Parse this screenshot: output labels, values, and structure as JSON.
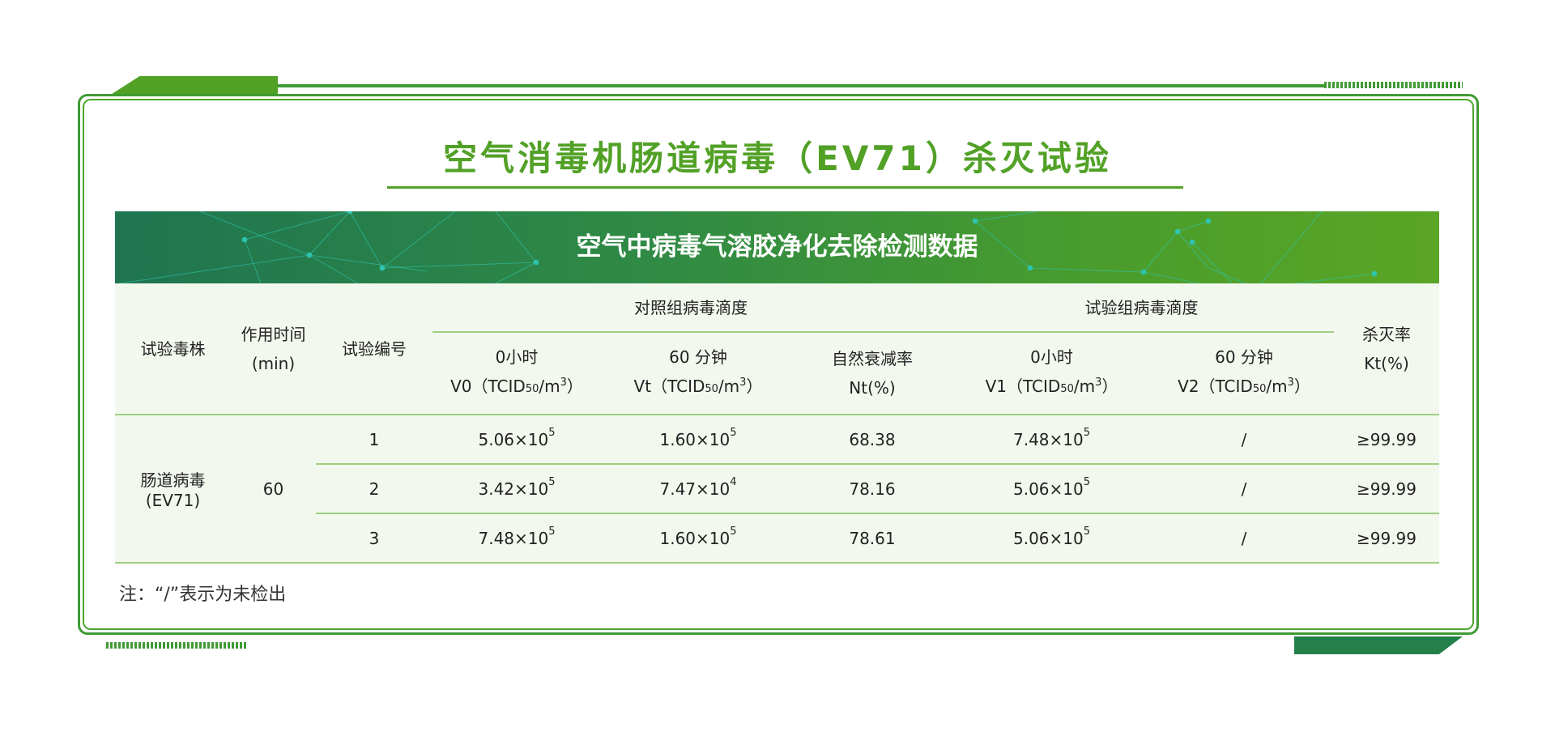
{
  "title": "空气消毒机肠道病毒（EV71）杀灭试验",
  "banner_title": "空气中病毒气溶胶净化去除检测数据",
  "colors": {
    "accent": "#52a127",
    "dark_green": "#1f7550",
    "table_bg": "#f3f8ef",
    "row_line": "#9fcf80"
  },
  "table": {
    "headers": {
      "strain": "试验毒株",
      "time_line1": "作用时间",
      "time_line2": "(min)",
      "test_no": "试验编号",
      "control_group": "对照组病毒滴度",
      "test_group": "试验组病毒滴度",
      "v0_line1": "0小时",
      "v0_line2": "V0（TCID",
      "vt_line1": "60 分钟",
      "vt_line2": "Vt（TCID",
      "nt_line1": "自然衰减率",
      "nt_line2": "Nt(%)",
      "v1_line1": "0小时",
      "v1_line2": "V1（TCID",
      "v2_line1": "60 分钟",
      "v2_line2": "V2（TCID",
      "unit_sub": "50",
      "unit_mid": "/m",
      "unit_sup": "3",
      "unit_end": "）",
      "kt_line1": "杀灭率",
      "kt_line2": "Kt(%)"
    },
    "strain_line1": "肠道病毒",
    "strain_line2": "(EV71)",
    "time": "60",
    "rows": [
      {
        "no": "1",
        "v0": {
          "m": "5.06×10",
          "e": "5"
        },
        "vt": {
          "m": "1.60×10",
          "e": "5"
        },
        "nt": "68.38",
        "v1": {
          "m": "7.48×10",
          "e": "5"
        },
        "v2": "/",
        "kt": "≥99.99"
      },
      {
        "no": "2",
        "v0": {
          "m": "3.42×10",
          "e": "5"
        },
        "vt": {
          "m": "7.47×10",
          "e": "4"
        },
        "nt": "78.16",
        "v1": {
          "m": "5.06×10",
          "e": "5"
        },
        "v2": "/",
        "kt": "≥99.99"
      },
      {
        "no": "3",
        "v0": {
          "m": "7.48×10",
          "e": "5"
        },
        "vt": {
          "m": "1.60×10",
          "e": "5"
        },
        "nt": "78.61",
        "v1": {
          "m": "5.06×10",
          "e": "5"
        },
        "v2": "/",
        "kt": "≥99.99"
      }
    ]
  },
  "note": "注：“/”表示为未检出"
}
